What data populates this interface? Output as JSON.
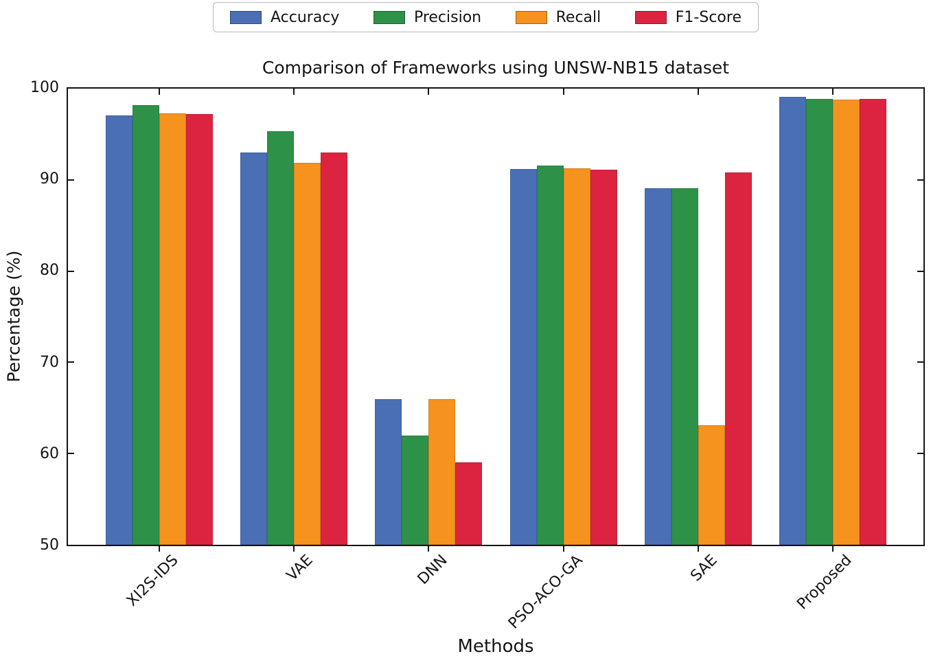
{
  "chart_data": {
    "type": "bar",
    "title": "Comparison of Frameworks using UNSW-NB15 dataset",
    "xlabel": "Methods",
    "ylabel": "Percentage (%)",
    "categories": [
      "XI2S-IDS",
      "VAE",
      "DNN",
      "PSO-ACO-GA",
      "SAE",
      "Proposed"
    ],
    "series": [
      {
        "name": "Accuracy",
        "color": "#4A6FB5",
        "values": [
          97.1,
          93.0,
          66.0,
          91.2,
          89.1,
          99.1
        ]
      },
      {
        "name": "Precision",
        "color": "#2E9148",
        "values": [
          98.2,
          95.3,
          62.0,
          91.6,
          89.1,
          98.9
        ]
      },
      {
        "name": "Recall",
        "color": "#F6921E",
        "values": [
          97.3,
          91.9,
          66.0,
          91.3,
          63.1,
          98.8
        ]
      },
      {
        "name": "F1-Score",
        "color": "#DC2440",
        "values": [
          97.2,
          93.0,
          59.0,
          91.1,
          90.8,
          98.9
        ]
      }
    ],
    "ylim": [
      50,
      100
    ],
    "yticks": [
      50,
      60,
      70,
      80,
      90,
      100
    ],
    "inner_yticks": [
      60,
      70,
      80,
      90
    ],
    "grid": false,
    "legend_position": "top-center",
    "axis_color": "#141414"
  }
}
